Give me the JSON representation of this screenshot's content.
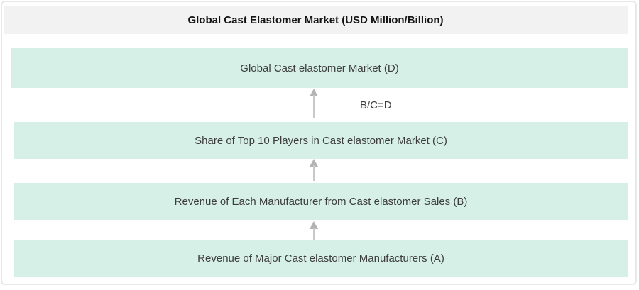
{
  "title": "Global Cast Elastomer Market (USD Million/Billion)",
  "bands": [
    {
      "id": "D",
      "label": "Global Cast elastomer Market (D)"
    },
    {
      "id": "C",
      "label": "Share of Top 10 Players in Cast elastomer Market (C)"
    },
    {
      "id": "B",
      "label": "Revenue of Each Manufacturer from Cast elastomer Sales (B)"
    },
    {
      "id": "A",
      "label": "Revenue of Major Cast elastomer Manufacturers (A)"
    }
  ],
  "formula_label": "B/C=D",
  "colors": {
    "band_bg": "#d6f0e8",
    "title_bg": "#f2f2f2",
    "title_text": "#141414",
    "text": "#3d3d3d",
    "border": "#e8e8e8",
    "arrow_head": "#b3b3b3",
    "arrow_shaft": "#c9c9c9"
  }
}
